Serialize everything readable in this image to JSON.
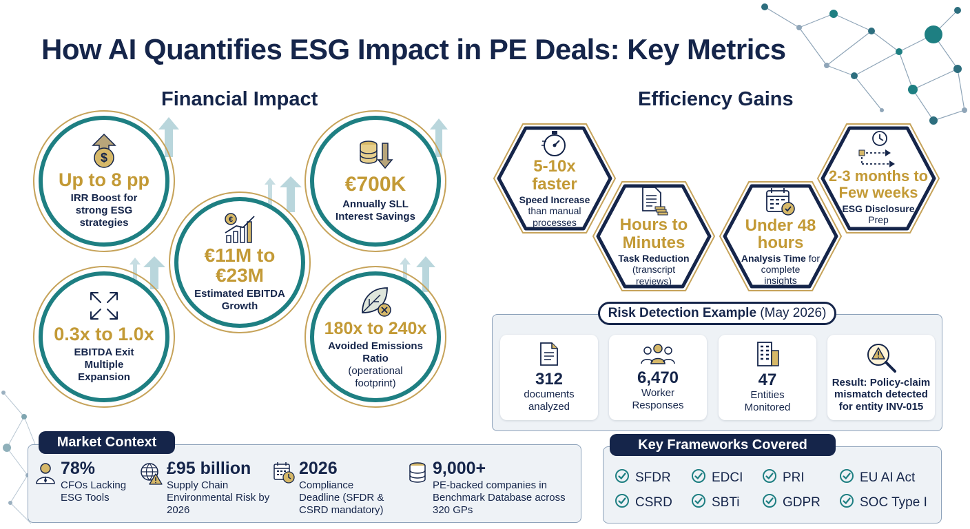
{
  "title": "How AI Quantifies ESG Impact in PE Deals: Key Metrics",
  "financial": {
    "heading": "Financial Impact",
    "items": [
      {
        "value": "Up to 8 pp",
        "label": "IRR Boost for strong ESG strategies",
        "icon": "dollar-up-icon"
      },
      {
        "value": "€11M to €23M",
        "label": "Estimated EBITDA Growth",
        "icon": "euro-bar-chart-icon"
      },
      {
        "value": "€700K",
        "label": "Annually SLL Interest Savings",
        "icon": "coins-down-icon"
      },
      {
        "value": "0.3x to 1.0x",
        "label": "EBITDA Exit Multiple Expansion",
        "icon": "expand-arrows-icon"
      },
      {
        "value": "180x to 240x",
        "label": "Avoided Emissions Ratio",
        "sub": "(operational footprint)",
        "icon": "leaf-x-icon"
      }
    ]
  },
  "efficiency": {
    "heading": "Efficiency Gains",
    "items": [
      {
        "value": "5-10x faster",
        "label": "Speed Increase",
        "sub": "than manual processes",
        "icon": "stopwatch-icon"
      },
      {
        "value": "Hours to Minutes",
        "label": "Task Reduction",
        "sub": "(transcript reviews)",
        "icon": "document-stack-icon"
      },
      {
        "value": "Under 48 hours",
        "label": "Analysis Time",
        "label_tail": " for",
        "sub": "complete insights",
        "icon": "calendar-check-icon"
      },
      {
        "value": "2-3 months to Few weeks",
        "label": "ESG Disclosure",
        "sub": "Prep",
        "icon": "clock-timeline-icon"
      }
    ]
  },
  "risk": {
    "heading": "Risk Detection Example",
    "heading_date": "(May 2026)",
    "cards": [
      {
        "value": "312",
        "label": "documents analyzed",
        "icon": "document-icon"
      },
      {
        "value": "6,470",
        "label": "Worker Responses",
        "icon": "people-icon"
      },
      {
        "value": "47",
        "label": "Entities Monitored",
        "icon": "building-icon"
      },
      {
        "value": "",
        "label": "Result: Policy-claim mismatch detected for entity INV-015",
        "icon": "warning-magnifier-icon"
      }
    ]
  },
  "market": {
    "heading": "Market Context",
    "items": [
      {
        "value": "78%",
        "label": "CFOs Lacking ESG Tools",
        "icon": "cfo-person-icon"
      },
      {
        "value": "£95 billion",
        "label": "Supply Chain Environmental Risk by 2026",
        "icon": "globe-warning-icon"
      },
      {
        "value": "2026",
        "label": "Compliance Deadline (SFDR & CSRD mandatory)",
        "icon": "calendar-clock-icon"
      },
      {
        "value": "9,000+",
        "label": "PE-backed companies in Benchmark Database across 320 GPs",
        "icon": "database-icon"
      }
    ]
  },
  "frameworks": {
    "heading": "Key Frameworks Covered",
    "items": [
      "SFDR",
      "EDCI",
      "PRI",
      "EU AI Act",
      "CSRD",
      "SBTi",
      "GDPR",
      "SOC Type I"
    ]
  },
  "colors": {
    "navy": "#15254a",
    "teal": "#1e7f82",
    "gold": "#c39a36",
    "panel": "#eef2f6"
  }
}
